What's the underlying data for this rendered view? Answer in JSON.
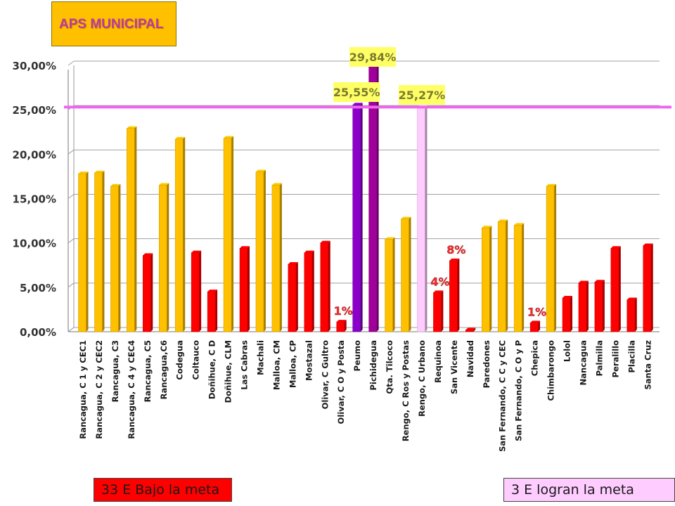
{
  "chart_data": {
    "type": "bar",
    "title": "APS MUNICIPAL",
    "ylim": [
      0,
      30
    ],
    "yticks": [
      "0,00%",
      "5,00%",
      "10,00%",
      "15,00%",
      "20,00%",
      "25,00%",
      "30,00%"
    ],
    "goal_line": 25.3,
    "categories": [
      "Rancagua, C 1 y CEC1",
      "Rancagua, C 2 y CEC2",
      "Rancagua, C3",
      "Rancagua, C 4 y CEC4",
      "Rancagua, C5",
      "Rancagua,C6",
      "Codegua",
      "Coltauco",
      "Doñihue, C D",
      "Doñihue, CLM",
      "Las Cabras",
      "Machali",
      "Malloa, CM",
      "Malloa, CP",
      "Mostazal",
      "Olivar, C Gultro",
      "Olivar, C O y Posta",
      "Peumo",
      "Pichidegua",
      "Qta. Tilcoco",
      "Rengo, C Ros y Postas",
      "Rengo, C Urbano",
      "Requinoa",
      "San Vicente",
      "Navidad",
      "Paredones",
      "San Fernando, C C y CEC",
      "San Fernando, C O y P",
      "Chepica",
      "Chimbarongo",
      "Lolol",
      "Nancagua",
      "Palmilla",
      "Peralillo",
      "Placilla",
      "Santa Cruz"
    ],
    "values": [
      17.8,
      17.9,
      16.4,
      22.9,
      8.6,
      16.5,
      21.7,
      8.9,
      4.5,
      21.8,
      9.4,
      18.0,
      16.5,
      7.6,
      8.9,
      10.0,
      1.1,
      25.55,
      29.84,
      10.4,
      12.7,
      25.27,
      4.4,
      8.0,
      0.2,
      11.7,
      12.4,
      12.0,
      1.0,
      16.4,
      3.8,
      5.5,
      5.6,
      9.4,
      3.6,
      9.7
    ],
    "bar_colors": [
      "#ffc000",
      "#ffc000",
      "#ffc000",
      "#ffc000",
      "#ff0000",
      "#ffc000",
      "#ffc000",
      "#ff0000",
      "#ff0000",
      "#ffc000",
      "#ff0000",
      "#ffc000",
      "#ffc000",
      "#ff0000",
      "#ff0000",
      "#ff0000",
      "#ff0000",
      "#8b00c8",
      "#a0009a",
      "#ffc000",
      "#ffc000",
      "#ffccff",
      "#ff0000",
      "#ff0000",
      "#ff0000",
      "#ffc000",
      "#ffc000",
      "#ffc000",
      "#ff0000",
      "#ffc000",
      "#ff0000",
      "#ff0000",
      "#ff0000",
      "#ff0000",
      "#ff0000",
      "#ff0000"
    ],
    "annotations": [
      {
        "index": 18,
        "text": "29,84%",
        "boxed": true
      },
      {
        "index": 17,
        "text": "25,55%",
        "boxed": true
      },
      {
        "index": 21,
        "text": "25,27%",
        "boxed": true
      },
      {
        "index": 23,
        "text": "8%",
        "boxed": false
      },
      {
        "index": 22,
        "text": "4%",
        "boxed": false
      },
      {
        "index": 16,
        "text": "1%",
        "boxed": false
      },
      {
        "index": 28,
        "text": "1%",
        "boxed": false
      }
    ],
    "colors": {
      "below_goal": "#ff0000",
      "near_goal": "#ffc000",
      "goal_line": "#ee66ee",
      "annotation_box": "#ffff66",
      "annotation_text": "#7a7a30"
    }
  },
  "legend": {
    "below_goal_label": "33 E Bajo la meta",
    "met_goal_label": "3 E logran la meta"
  }
}
